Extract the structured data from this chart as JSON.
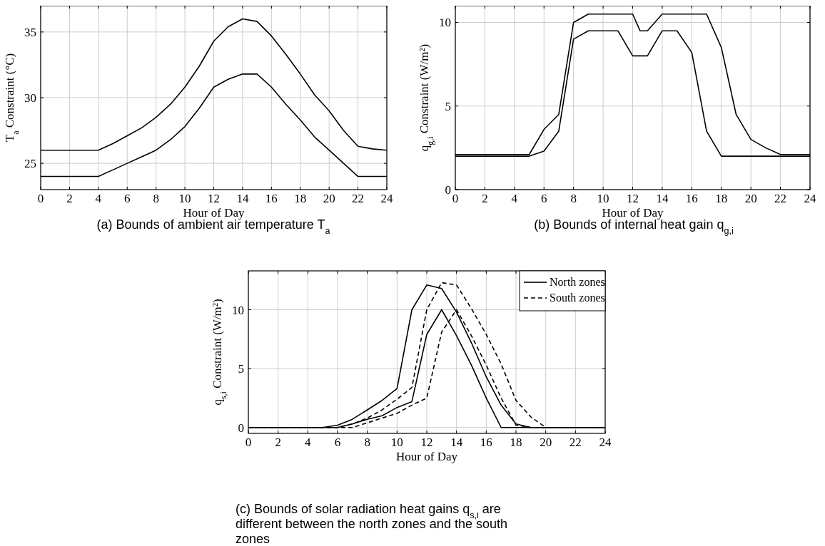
{
  "chart_data": [
    {
      "type": "line",
      "xlabel": "Hour of Day",
      "ylabel": "T$_{a}$ Constraint (°C)",
      "xlim": [
        0,
        24
      ],
      "xticks": [
        0,
        2,
        4,
        6,
        8,
        10,
        12,
        14,
        16,
        18,
        20,
        22,
        24
      ],
      "ylim": [
        23,
        37
      ],
      "yticks": [
        25,
        30,
        35
      ],
      "grid": true,
      "annotations": [
        "(a) Bounds of ambient air temperature T$_{a}$"
      ],
      "series": [
        {
          "color": "#000000",
          "line_style": "solid",
          "x": [
            0,
            1,
            2,
            3,
            4,
            5,
            6,
            7,
            8,
            9,
            10,
            11,
            12,
            13,
            14,
            15,
            16,
            17,
            18,
            19,
            20,
            21,
            22,
            23,
            24
          ],
          "values": [
            26,
            26,
            26,
            26,
            26,
            26.5,
            27.1,
            27.7,
            28.5,
            29.5,
            30.8,
            32.4,
            34.3,
            35.4,
            36,
            35.8,
            34.7,
            33.3,
            31.8,
            30.2,
            29,
            27.5,
            26.3,
            26.1,
            26
          ]
        },
        {
          "color": "#000000",
          "line_style": "solid",
          "x": [
            0,
            1,
            2,
            3,
            4,
            5,
            6,
            7,
            8,
            9,
            10,
            11,
            12,
            13,
            14,
            15,
            16,
            17,
            18,
            19,
            20,
            21,
            22,
            23,
            24
          ],
          "values": [
            24,
            24,
            24,
            24,
            24,
            24.5,
            25,
            25.5,
            26,
            26.8,
            27.8,
            29.2,
            30.8,
            31.4,
            31.8,
            31.8,
            30.8,
            29.5,
            28.3,
            27,
            26,
            25,
            24,
            24,
            24
          ]
        }
      ]
    },
    {
      "type": "line",
      "xlabel": "Hour of Day",
      "ylabel": "q$_{g,i}$ Constraint (W/m²)",
      "xlim": [
        0,
        24
      ],
      "xticks": [
        0,
        2,
        4,
        6,
        8,
        10,
        12,
        14,
        16,
        18,
        20,
        22,
        24
      ],
      "ylim": [
        0,
        11
      ],
      "yticks": [
        0,
        5,
        10
      ],
      "grid": true,
      "annotations": [
        "(b) Bounds of internal heat gain q$_{g,i}$"
      ],
      "series": [
        {
          "color": "#000000",
          "line_style": "solid",
          "x": [
            0,
            1,
            2,
            3,
            4,
            5,
            6,
            7,
            8,
            9,
            10,
            11,
            12,
            12.5,
            13,
            14,
            15,
            16,
            17,
            18,
            19,
            20,
            21,
            22,
            23,
            24
          ],
          "values": [
            2.1,
            2.1,
            2.1,
            2.1,
            2.1,
            2.1,
            3.6,
            4.5,
            10,
            10.5,
            10.5,
            10.5,
            10.5,
            9.5,
            9.5,
            10.5,
            10.5,
            10.5,
            10.5,
            8.5,
            4.5,
            3,
            2.5,
            2.1,
            2.1,
            2.1
          ]
        },
        {
          "color": "#000000",
          "line_style": "solid",
          "x": [
            0,
            1,
            2,
            3,
            4,
            5,
            6,
            7,
            8,
            9,
            10,
            11,
            12,
            13,
            14,
            15,
            16,
            17,
            18,
            19,
            20,
            21,
            22,
            23,
            24
          ],
          "values": [
            2,
            2,
            2,
            2,
            2,
            2,
            2.3,
            3.5,
            9,
            9.5,
            9.5,
            9.5,
            8,
            8,
            9.5,
            9.5,
            8.2,
            3.5,
            2,
            2,
            2,
            2,
            2,
            2,
            2
          ]
        }
      ]
    },
    {
      "type": "line",
      "xlabel": "Hour of Day",
      "ylabel": "q$_{s,i}$ Constraint (W/m²)",
      "xlim": [
        0,
        24
      ],
      "xticks": [
        0,
        2,
        4,
        6,
        8,
        10,
        12,
        14,
        16,
        18,
        20,
        22,
        24
      ],
      "ylim": [
        -0.5,
        13.3
      ],
      "yticks": [
        0,
        5,
        10
      ],
      "grid": true,
      "legend": "top right",
      "annotations": [
        "(c) Bounds of solar radiation heat gains q$_{s,i}$ are different between the north zones and the south zones"
      ],
      "series": [
        {
          "name": "North zones",
          "color": "#000000",
          "line_style": "solid",
          "x": [
            0,
            1,
            2,
            3,
            4,
            5,
            6,
            7,
            8,
            9,
            10,
            11,
            12,
            13,
            14,
            15,
            16,
            17,
            18,
            19,
            20,
            21,
            22,
            23,
            24
          ],
          "values": [
            0,
            0,
            0,
            0,
            0,
            0,
            0.2,
            0.7,
            1.5,
            2.3,
            3.3,
            10,
            12.1,
            11.8,
            9.8,
            7.2,
            4.3,
            1.9,
            0.3,
            0,
            0,
            0,
            0,
            0,
            0
          ]
        },
        {
          "color": "#000000",
          "line_style": "solid",
          "x": [
            0,
            1,
            2,
            3,
            4,
            5,
            6,
            7,
            8,
            9,
            10,
            11,
            12,
            13,
            14,
            15,
            16,
            17,
            18,
            19,
            20,
            21,
            22,
            23,
            24
          ],
          "values": [
            0,
            0,
            0,
            0,
            0,
            0,
            0,
            0.3,
            0.7,
            1,
            1.7,
            2.2,
            7.9,
            10,
            7.8,
            5.3,
            2.5,
            0,
            0,
            0,
            0,
            0,
            0,
            0,
            0
          ]
        },
        {
          "name": "South zones",
          "color": "#000000",
          "line_style": "dashed",
          "x": [
            0,
            1,
            2,
            3,
            4,
            5,
            6,
            7,
            8,
            9,
            10,
            11,
            12,
            13,
            14,
            15,
            16,
            17,
            18,
            19,
            20,
            21,
            22,
            23,
            24
          ],
          "values": [
            0,
            0,
            0,
            0,
            0,
            0,
            0,
            0.3,
            0.8,
            1.5,
            2.4,
            3.4,
            10,
            12.3,
            12.1,
            10.1,
            7.9,
            5.4,
            2.3,
            0.9,
            0,
            0,
            0,
            0,
            0
          ]
        },
        {
          "color": "#000000",
          "line_style": "dashed",
          "x": [
            0,
            1,
            2,
            3,
            4,
            5,
            6,
            7,
            8,
            9,
            10,
            11,
            12,
            13,
            14,
            15,
            16,
            17,
            18,
            19,
            20,
            21,
            22,
            23,
            24
          ],
          "values": [
            0,
            0,
            0,
            0,
            0,
            0,
            0,
            0,
            0.4,
            0.8,
            1.2,
            1.9,
            2.5,
            8.1,
            10,
            7.8,
            5.3,
            2.5,
            0.2,
            0,
            0,
            0,
            0,
            0,
            0
          ]
        }
      ]
    }
  ]
}
